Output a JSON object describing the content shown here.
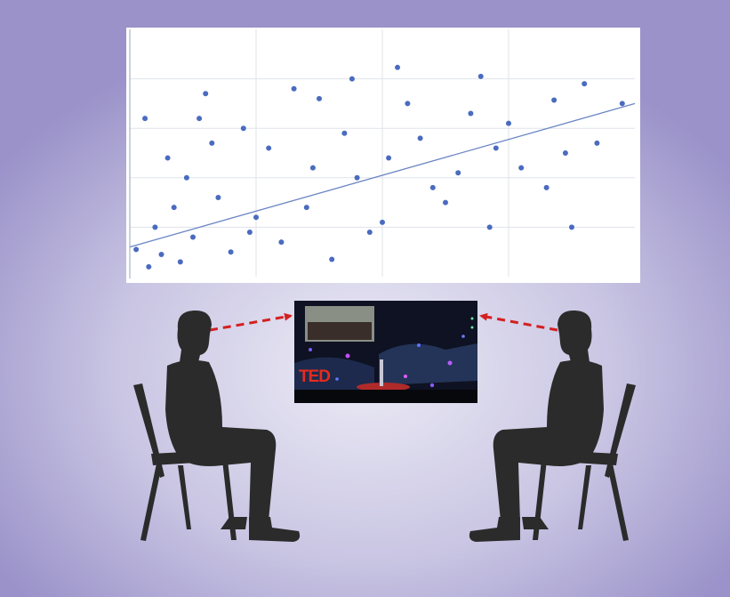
{
  "screen": {
    "logo_text": "TED"
  },
  "colors": {
    "background_center": "#ecebf5",
    "background_edge": "#9a92c9",
    "points": "#4a6bbf",
    "trend_line": "#6b86c4",
    "gaze_arrow": "#d42020",
    "silhouette": "#2b2b2b"
  },
  "chart_data": {
    "type": "scatter",
    "title": "",
    "xlabel": "",
    "ylabel": "",
    "xlim": [
      0,
      4
    ],
    "ylim": [
      0,
      5
    ],
    "grid": true,
    "gridlines_x": [
      1,
      2,
      3
    ],
    "gridlines_y": [
      1,
      2,
      3,
      4
    ],
    "trend": {
      "x": [
        0,
        4
      ],
      "y": [
        0.6,
        3.5
      ]
    },
    "points": [
      [
        2.12,
        4.23
      ],
      [
        2.78,
        4.05
      ],
      [
        1.76,
        4.0
      ],
      [
        3.36,
        3.57
      ],
      [
        0.12,
        3.2
      ],
      [
        0.55,
        3.2
      ],
      [
        1.5,
        3.6
      ],
      [
        2.3,
        2.8
      ],
      [
        2.7,
        3.3
      ],
      [
        1.1,
        2.6
      ],
      [
        0.3,
        2.4
      ],
      [
        0.9,
        3.0
      ],
      [
        1.8,
        2.0
      ],
      [
        2.5,
        1.5
      ],
      [
        3.1,
        2.2
      ],
      [
        3.6,
        3.9
      ],
      [
        3.9,
        3.5
      ],
      [
        0.7,
        1.6
      ],
      [
        1.4,
        1.4
      ],
      [
        2.0,
        1.1
      ],
      [
        2.9,
        2.6
      ],
      [
        3.3,
        1.8
      ],
      [
        0.2,
        1.0
      ],
      [
        0.5,
        0.8
      ],
      [
        1.2,
        0.7
      ],
      [
        1.9,
        0.9
      ],
      [
        0.4,
        0.3
      ],
      [
        0.15,
        0.2
      ],
      [
        0.25,
        0.45
      ],
      [
        0.8,
        0.5
      ],
      [
        1.6,
        0.35
      ],
      [
        2.4,
        1.8
      ],
      [
        3.5,
        1.0
      ],
      [
        3.7,
        2.7
      ],
      [
        1.3,
        3.8
      ],
      [
        0.6,
        3.7
      ],
      [
        2.2,
        3.5
      ],
      [
        1.0,
        1.2
      ],
      [
        0.35,
        1.4
      ],
      [
        0.45,
        2.0
      ],
      [
        2.6,
        2.1
      ],
      [
        1.7,
        2.9
      ],
      [
        3.0,
        3.1
      ],
      [
        0.05,
        0.55
      ],
      [
        0.95,
        0.9
      ],
      [
        2.05,
        2.4
      ],
      [
        2.85,
        1.0
      ],
      [
        3.45,
        2.5
      ],
      [
        1.45,
        2.2
      ],
      [
        0.65,
        2.7
      ]
    ]
  }
}
